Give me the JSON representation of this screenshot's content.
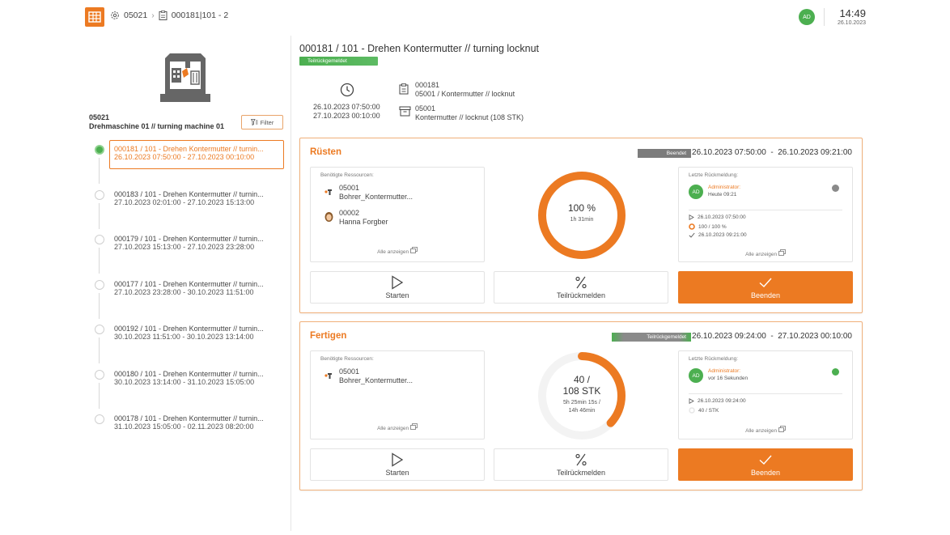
{
  "header": {
    "breadcrumb": [
      "05021",
      "000181|101 - 2"
    ],
    "user_initials": "AD",
    "time": "14:49",
    "date": "26.10.2023"
  },
  "sidebar": {
    "machine_id": "05021",
    "machine_name": "Drehmaschine 01 // turning machine 01",
    "filter_label": "Filter",
    "orders": [
      {
        "title": "000181 / 101 - Drehen Kontermutter // turnin...",
        "range": "26.10.2023 07:50:00 - 27.10.2023 00:10:00",
        "active": true
      },
      {
        "title": "000183 / 101 - Drehen Kontermutter // turnin...",
        "range": "27.10.2023 02:01:00 - 27.10.2023 15:13:00",
        "active": false
      },
      {
        "title": "000179 / 101 - Drehen Kontermutter // turnin...",
        "range": "27.10.2023 15:13:00 - 27.10.2023 23:28:00",
        "active": false
      },
      {
        "title": "000177 / 101 - Drehen Kontermutter // turnin...",
        "range": "27.10.2023 23:28:00 - 30.10.2023 11:51:00",
        "active": false
      },
      {
        "title": "000192 / 101 - Drehen Kontermutter // turnin...",
        "range": "30.10.2023 11:51:00 - 30.10.2023 13:14:00",
        "active": false
      },
      {
        "title": "000180 / 101 - Drehen Kontermutter // turnin...",
        "range": "30.10.2023 13:14:00 - 31.10.2023 15:05:00",
        "active": false
      },
      {
        "title": "000178 / 101 - Drehen Kontermutter // turnin...",
        "range": "31.10.2023 15:05:00 - 02.11.2023 08:20:00",
        "active": false
      }
    ]
  },
  "main": {
    "title": "000181 / 101 - Drehen Kontermutter // turning locknut",
    "status": "Teilrückgemeldet",
    "date_start": "26.10.2023 07:50:00",
    "date_end": "27.10.2023 00:10:00",
    "order_no": "000181",
    "order_desc": "05001 / Kontermutter // locknut",
    "article_no": "05001",
    "article_desc": "Kontermutter // locknut (108 STK)"
  },
  "sections": [
    {
      "title": "Rüsten",
      "status": "Beendet",
      "start": "26.10.2023 07:50:00",
      "end": "26.10.2023 09:21:00",
      "resources_label": "Benötigte Ressourcen:",
      "resources": [
        {
          "id": "05001",
          "name": "Bohrer_Kontermutter...",
          "icon": "drill-tool-icon"
        },
        {
          "id": "00002",
          "name": "Hanna Forgber",
          "icon": "person-icon"
        }
      ],
      "show_all": "Alle anzeigen",
      "progress": {
        "fraction": 1.0,
        "main": "100 %",
        "sub": "1h 31min"
      },
      "feedback_label": "Letzte Rückmeldung:",
      "feedback_user": "Administrator:",
      "feedback_initials": "AD",
      "feedback_time": "Heute 09:21",
      "feedback_dot": "#8a8a8a",
      "feedback_lines": [
        "26.10.2023 07:50:00",
        "100 / 100 %",
        "26.10.2023 09:21:00"
      ],
      "actions": [
        "Starten",
        "Teilrückmelden",
        "Beenden"
      ]
    },
    {
      "title": "Fertigen",
      "status": "Teilrückgemeldet",
      "start": "26.10.2023 09:24:00",
      "end": "27.10.2023 00:10:00",
      "resources_label": "Benötigte Ressourcen:",
      "resources": [
        {
          "id": "05001",
          "name": "Bohrer_Kontermutter...",
          "icon": "drill-tool-icon"
        }
      ],
      "show_all": "Alle anzeigen",
      "progress": {
        "fraction": 0.37,
        "main1": "40 /",
        "main2": "108 STK",
        "sub1": "5h 25min 15s /",
        "sub2": "14h 46min"
      },
      "feedback_label": "Letzte Rückmeldung:",
      "feedback_user": "Administrator:",
      "feedback_initials": "AD",
      "feedback_time": "vor 16 Sekunden",
      "feedback_dot": "#4caf50",
      "feedback_lines": [
        "26.10.2023 09:24:00",
        "40 / STK"
      ],
      "actions": [
        "Starten",
        "Teilrückmelden",
        "Beenden"
      ]
    }
  ],
  "colors": {
    "accent": "#ec7a22",
    "success": "#4caf50"
  }
}
